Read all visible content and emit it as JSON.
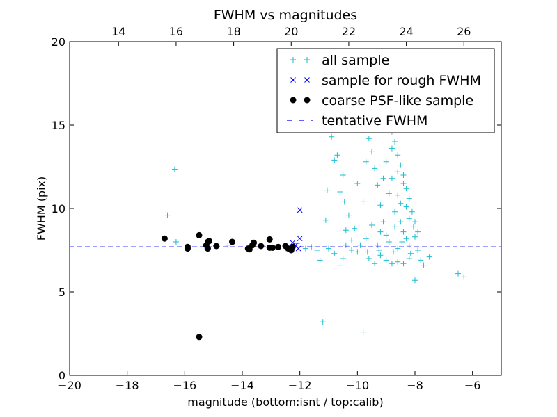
{
  "chart_data": {
    "type": "scatter",
    "title": "FWHM vs magnitudes",
    "xlabel": "magnitude (bottom:isnt / top:calib)",
    "ylabel": "FWHM (pix)",
    "xlim": [
      -20,
      -5
    ],
    "ylim": [
      0,
      20
    ],
    "x_ticks": [
      -20,
      -18,
      -16,
      -14,
      -12,
      -10,
      -8,
      -6
    ],
    "x_tick_labels": [
      "−20",
      "−18",
      "−16",
      "−14",
      "−12",
      "−10",
      "−8",
      "−6"
    ],
    "y_ticks": [
      0,
      5,
      10,
      15,
      20
    ],
    "y_tick_labels": [
      "0",
      "5",
      "10",
      "15",
      "20"
    ],
    "top_axis": {
      "label_note": "calib",
      "offset": 32.3,
      "ticks": [
        14,
        16,
        18,
        20,
        22,
        24,
        26
      ],
      "tick_labels": [
        "14",
        "16",
        "18",
        "20",
        "22",
        "24",
        "26"
      ]
    },
    "grid": false,
    "legend_position": "top-right",
    "series": [
      {
        "name": "all sample",
        "marker": "+",
        "color": "#17becf",
        "points": [
          [
            -16.6,
            9.6
          ],
          [
            -16.35,
            12.35
          ],
          [
            -16.3,
            8.0
          ],
          [
            -15.3,
            7.7
          ],
          [
            -14.5,
            7.8
          ],
          [
            -12.8,
            7.7
          ],
          [
            -12.3,
            7.6
          ],
          [
            -12.1,
            7.9
          ],
          [
            -11.8,
            7.6
          ],
          [
            -11.6,
            7.7
          ],
          [
            -11.4,
            7.5
          ],
          [
            -11.3,
            6.9
          ],
          [
            -11.2,
            3.2
          ],
          [
            -11.1,
            9.3
          ],
          [
            -11.0,
            7.6
          ],
          [
            -10.8,
            7.3
          ],
          [
            -10.6,
            6.6
          ],
          [
            -10.5,
            7.0
          ],
          [
            -10.4,
            8.7
          ],
          [
            -10.2,
            7.5
          ],
          [
            -10.0,
            7.4
          ],
          [
            -9.8,
            2.6
          ],
          [
            -9.6,
            7.0
          ],
          [
            -9.4,
            6.7
          ],
          [
            -9.2,
            7.2
          ],
          [
            -9.0,
            6.9
          ],
          [
            -8.8,
            6.7
          ],
          [
            -8.6,
            6.8
          ],
          [
            -8.4,
            6.7
          ],
          [
            -8.2,
            7.0
          ],
          [
            -8.0,
            5.7
          ],
          [
            -7.8,
            6.9
          ],
          [
            -7.7,
            6.6
          ],
          [
            -7.5,
            7.1
          ],
          [
            -6.5,
            6.1
          ],
          [
            -6.3,
            5.9
          ],
          [
            -11.0,
            15.5
          ],
          [
            -10.9,
            14.3
          ],
          [
            -10.7,
            13.2
          ],
          [
            -10.8,
            12.9
          ],
          [
            -10.5,
            12.0
          ],
          [
            -10.6,
            11.0
          ],
          [
            -11.05,
            11.1
          ],
          [
            -10.45,
            10.4
          ],
          [
            -10.3,
            9.6
          ],
          [
            -10.1,
            8.8
          ],
          [
            -10.0,
            11.5
          ],
          [
            -9.8,
            10.4
          ],
          [
            -9.7,
            12.8
          ],
          [
            -9.6,
            14.2
          ],
          [
            -9.5,
            13.4
          ],
          [
            -9.4,
            12.4
          ],
          [
            -9.3,
            11.4
          ],
          [
            -9.2,
            10.2
          ],
          [
            -9.1,
            9.2
          ],
          [
            -9.0,
            8.4
          ],
          [
            -9.35,
            14.8
          ],
          [
            -9.3,
            15.6
          ],
          [
            -9.1,
            15.9
          ],
          [
            -8.9,
            15.4
          ],
          [
            -8.8,
            14.6
          ],
          [
            -8.7,
            14.0
          ],
          [
            -8.6,
            13.2
          ],
          [
            -8.5,
            12.6
          ],
          [
            -8.4,
            12.0
          ],
          [
            -8.3,
            11.2
          ],
          [
            -8.2,
            10.6
          ],
          [
            -8.1,
            9.8
          ],
          [
            -8.0,
            9.2
          ],
          [
            -7.9,
            8.6
          ],
          [
            -8.8,
            11.8
          ],
          [
            -8.6,
            10.8
          ],
          [
            -8.7,
            9.8
          ],
          [
            -8.5,
            9.2
          ],
          [
            -8.4,
            8.6
          ],
          [
            -8.3,
            8.2
          ],
          [
            -8.6,
            7.6
          ],
          [
            -8.9,
            8.0
          ],
          [
            -9.2,
            8.6
          ],
          [
            -9.5,
            9.0
          ],
          [
            -9.7,
            8.2
          ],
          [
            -9.9,
            7.8
          ],
          [
            -10.2,
            8.1
          ],
          [
            -10.4,
            7.8
          ],
          [
            -9.3,
            7.8
          ],
          [
            -8.2,
            7.8
          ],
          [
            -8.0,
            8.3
          ],
          [
            -7.9,
            7.5
          ],
          [
            -8.7,
            8.9
          ],
          [
            -8.5,
            10.3
          ],
          [
            -8.9,
            10.9
          ],
          [
            -9.1,
            11.8
          ],
          [
            -9.0,
            12.8
          ],
          [
            -8.8,
            13.6
          ],
          [
            -8.6,
            12.2
          ],
          [
            -8.4,
            11.5
          ],
          [
            -8.3,
            10.1
          ],
          [
            -8.2,
            9.4
          ],
          [
            -8.45,
            8.0
          ],
          [
            -8.75,
            7.4
          ],
          [
            -9.25,
            7.5
          ],
          [
            -9.65,
            7.4
          ],
          [
            -8.15,
            7.3
          ],
          [
            -8.05,
            8.9
          ]
        ]
      },
      {
        "name": "sample for rough FWHM",
        "marker": "x",
        "color": "#0000ff",
        "points": [
          [
            -12.0,
            9.9
          ],
          [
            -12.0,
            8.2
          ],
          [
            -12.15,
            7.8
          ],
          [
            -12.25,
            7.95
          ],
          [
            -12.4,
            7.6
          ],
          [
            -12.05,
            7.6
          ]
        ]
      },
      {
        "name": "coarse PSF-like sample",
        "marker": "o",
        "color": "#000000",
        "points": [
          [
            -16.7,
            8.2
          ],
          [
            -15.9,
            7.6
          ],
          [
            -15.9,
            7.7
          ],
          [
            -15.5,
            8.4
          ],
          [
            -15.5,
            2.3
          ],
          [
            -15.2,
            7.6
          ],
          [
            -15.2,
            8.0
          ],
          [
            -15.15,
            8.05
          ],
          [
            -15.25,
            7.8
          ],
          [
            -14.9,
            7.75
          ],
          [
            -14.35,
            8.0
          ],
          [
            -13.8,
            7.6
          ],
          [
            -13.75,
            7.55
          ],
          [
            -13.65,
            7.8
          ],
          [
            -13.6,
            7.95
          ],
          [
            -13.35,
            7.75
          ],
          [
            -13.05,
            8.15
          ],
          [
            -13.05,
            7.65
          ],
          [
            -12.95,
            7.65
          ],
          [
            -12.75,
            7.7
          ],
          [
            -12.5,
            7.75
          ],
          [
            -12.4,
            7.6
          ],
          [
            -12.3,
            7.5
          ],
          [
            -12.25,
            7.7
          ]
        ]
      },
      {
        "name": "tentative FWHM",
        "marker": "dashed-line",
        "color": "#0000ff",
        "y": 7.7
      }
    ]
  }
}
